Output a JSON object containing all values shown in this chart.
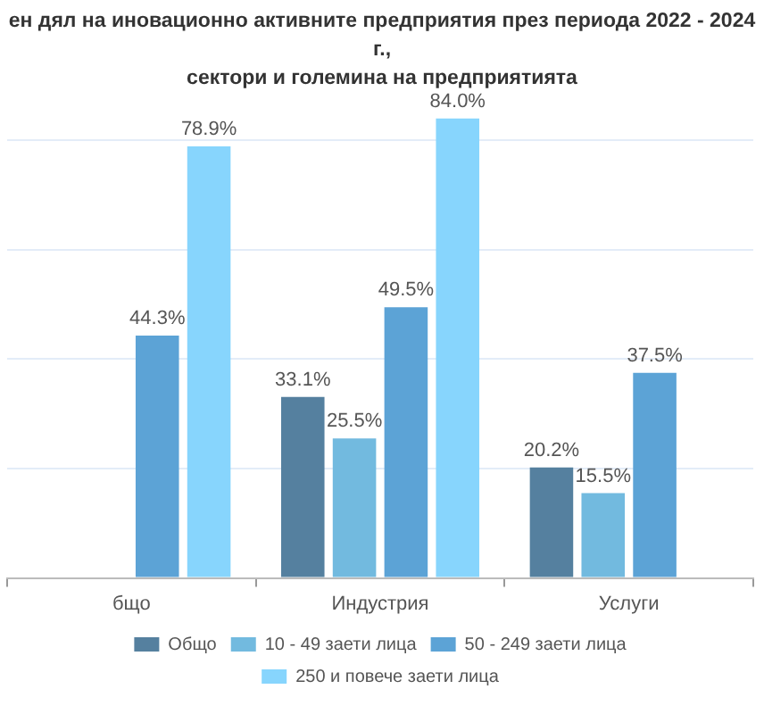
{
  "chart_data": {
    "type": "bar",
    "title": "ен дял на иновационно активните предприятия през периода 2022 - 2024 г.,\nсектори и големина на предприятията",
    "categories": [
      "бщо",
      "Индустрия",
      "Услуги"
    ],
    "series": [
      {
        "name": "Общо",
        "color": "#55809f",
        "values": [
          null,
          33.1,
          20.2
        ],
        "value_labels": [
          null,
          "33.1%",
          "20.2%"
        ]
      },
      {
        "name": "10 - 49 заети лица",
        "color": "#72badf",
        "values": [
          null,
          25.5,
          15.5
        ],
        "value_labels": [
          null,
          "25.5%",
          "15.5%"
        ]
      },
      {
        "name": "50 - 249 заети лица",
        "color": "#5ca3d6",
        "values": [
          44.3,
          49.5,
          37.5
        ],
        "value_labels": [
          "44.3%",
          "49.5%",
          "37.5%"
        ]
      },
      {
        "name": "250 и повече заети лица",
        "color": "#87d5fd",
        "values": [
          78.9,
          84.0,
          null
        ],
        "value_labels": [
          "78.9%",
          "84.0%",
          null
        ]
      }
    ],
    "yticks": [
      {
        "value": 0,
        "label": null
      },
      {
        "value": 20,
        "label": null
      },
      {
        "value": 40,
        "label": null
      },
      {
        "value": 60,
        "label": null
      },
      {
        "value": 80,
        "label": null
      }
    ],
    "tick_labels": "x",
    "grid": "y",
    "legend": "bottom"
  }
}
